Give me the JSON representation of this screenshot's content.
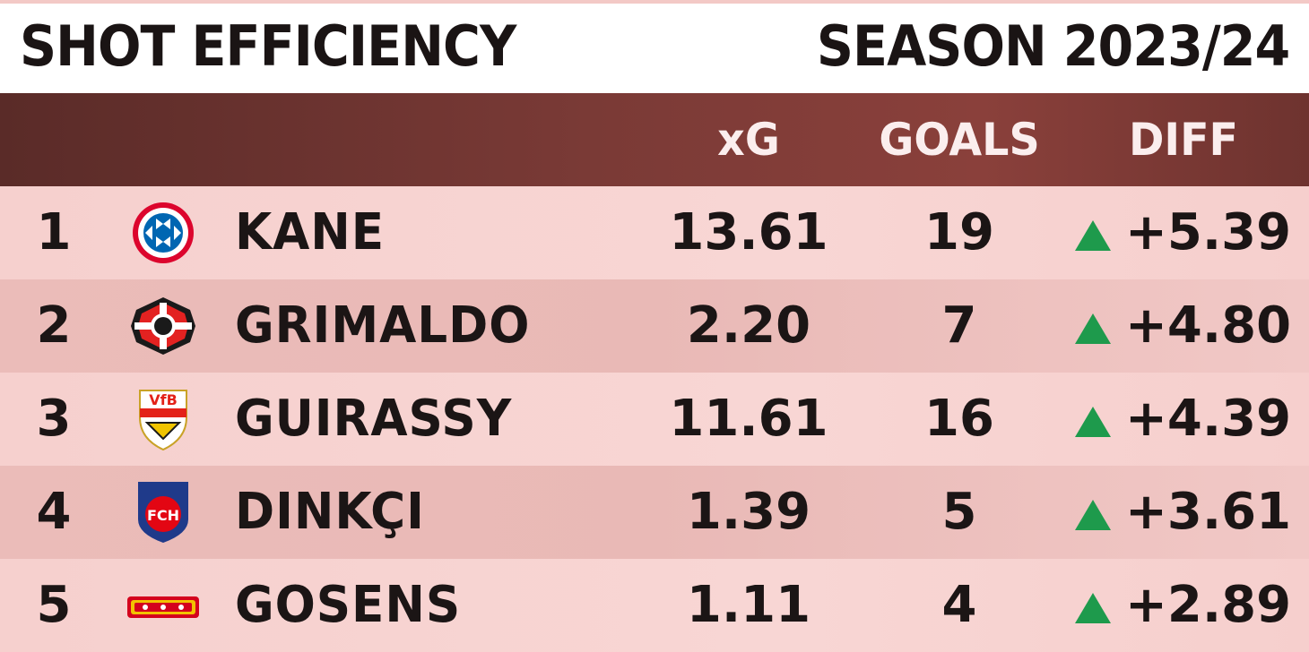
{
  "header": {
    "title": "SHOT EFFICIENCY",
    "season": "SEASON 2023/24"
  },
  "columns": {
    "xg": "xG",
    "goals": "GOALS",
    "diff": "DIFF"
  },
  "colors": {
    "header_bg": "#7a3a36",
    "row_light": "#f7d4d2",
    "row_dark": "#ebbcb9",
    "up_arrow": "#1e9a4c"
  },
  "rows": [
    {
      "rank": "1",
      "crest": "bayern-munich-crest-icon",
      "name": "KANE",
      "xg": "13.61",
      "goals": "19",
      "trend": "up-arrow-icon",
      "diff": "+5.39"
    },
    {
      "rank": "2",
      "crest": "bayer-leverkusen-crest-icon",
      "name": "GRIMALDO",
      "xg": "2.20",
      "goals": "7",
      "trend": "up-arrow-icon",
      "diff": "+4.80"
    },
    {
      "rank": "3",
      "crest": "vfb-stuttgart-crest-icon",
      "name": "GUIRASSY",
      "xg": "11.61",
      "goals": "16",
      "trend": "up-arrow-icon",
      "diff": "+4.39"
    },
    {
      "rank": "4",
      "crest": "heidenheim-crest-icon",
      "name": "DINKÇI",
      "xg": "1.39",
      "goals": "5",
      "trend": "up-arrow-icon",
      "diff": "+3.61"
    },
    {
      "rank": "5",
      "crest": "union-berlin-crest-icon",
      "name": "GOSENS",
      "xg": "1.11",
      "goals": "4",
      "trend": "up-arrow-icon",
      "diff": "+2.89"
    }
  ]
}
